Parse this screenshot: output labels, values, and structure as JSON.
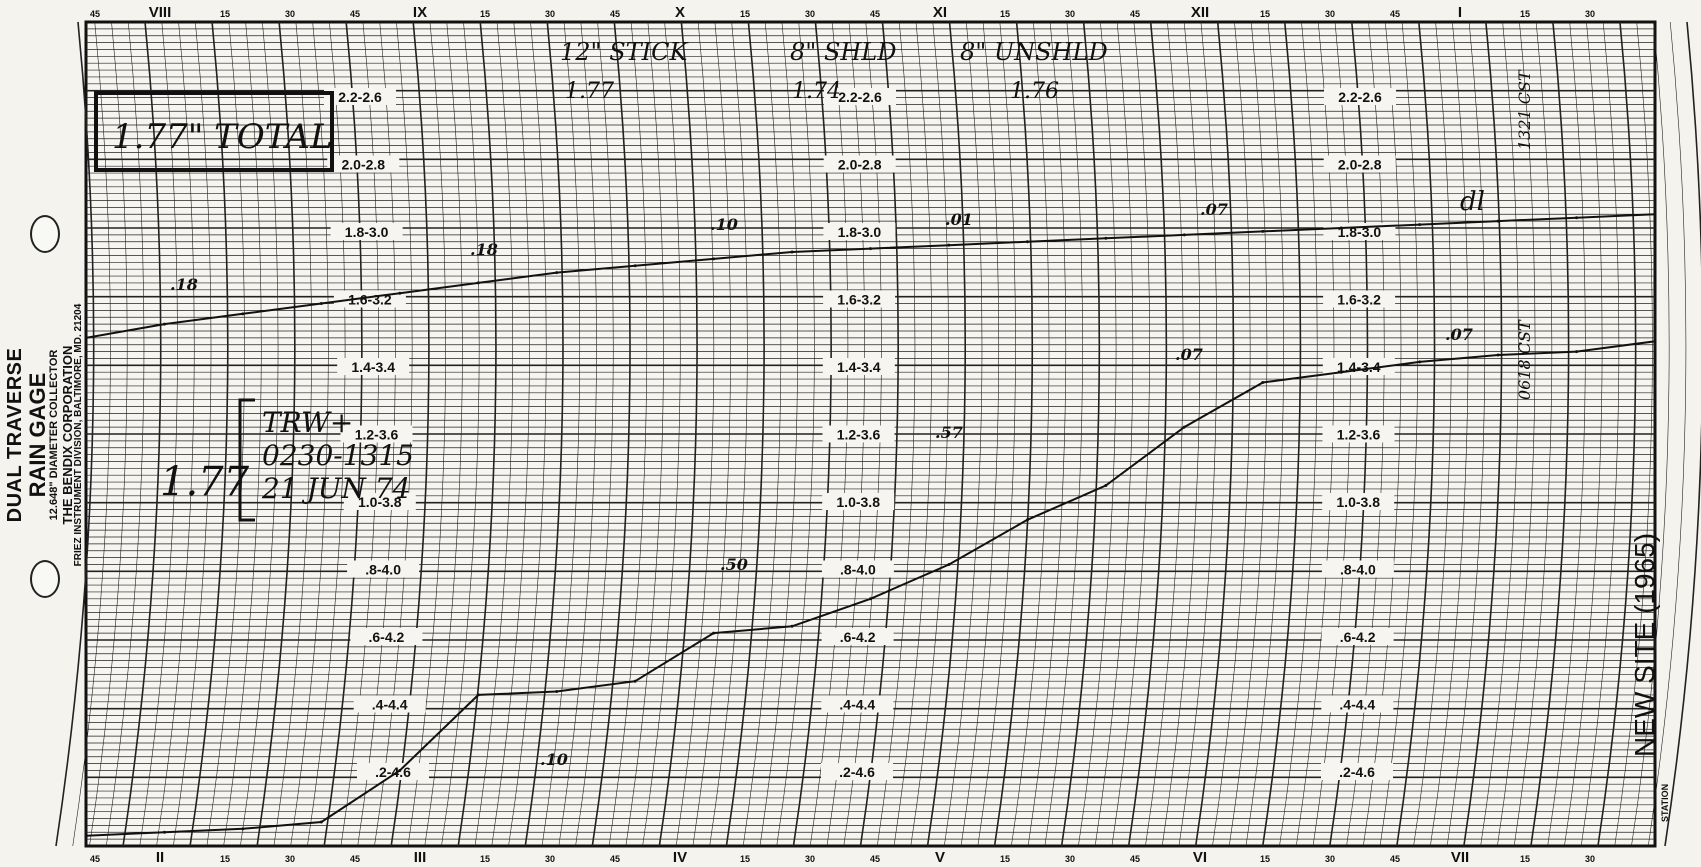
{
  "chart_data": {
    "type": "line",
    "title": "",
    "xlabel": "",
    "ylabel": "",
    "top_time_axis": [
      "45",
      "VIII",
      "15",
      "30",
      "45",
      "IX",
      "15",
      "30",
      "45",
      "X",
      "15",
      "30",
      "45",
      "XI",
      "15",
      "30",
      "45",
      "XII",
      "15",
      "30",
      "45",
      "I",
      "15",
      "30"
    ],
    "bottom_time_axis": [
      "45",
      "II",
      "15",
      "30",
      "45",
      "III",
      "15",
      "30",
      "45",
      "IV",
      "15",
      "30",
      "45",
      "V",
      "15",
      "30",
      "45",
      "VI",
      "15",
      "30",
      "45",
      "VII",
      "15",
      "30"
    ],
    "dual_scale_labels": [
      "2.2-2.6",
      "2.0-2.8",
      "1.8-3.0",
      "1.6-3.2",
      "1.4-3.4",
      "1.2-3.6",
      "1.0-3.8",
      ".8-4.0",
      ".6-4.2",
      ".4-4.4",
      ".2-4.6"
    ],
    "series": [
      {
        "x": [
          0.0,
          0.05,
          0.1,
          0.15,
          0.2,
          0.25,
          0.3,
          0.35,
          0.4,
          0.45,
          0.5,
          0.55,
          0.6,
          0.65,
          0.7,
          0.75,
          0.8,
          0.85,
          0.9,
          0.95,
          1.0
        ],
        "y": [
          1.48,
          1.52,
          1.55,
          1.58,
          1.61,
          1.64,
          1.67,
          1.69,
          1.71,
          1.73,
          1.74,
          1.75,
          1.76,
          1.77,
          1.78,
          1.79,
          1.8,
          1.81,
          1.82,
          1.83,
          1.84
        ]
      },
      {
        "x": [
          0.0,
          0.05,
          0.1,
          0.15,
          0.2,
          0.25,
          0.3,
          0.35,
          0.4,
          0.45,
          0.5,
          0.55,
          0.6,
          0.65,
          0.7,
          0.75,
          0.8,
          0.85,
          0.9,
          0.95,
          1.0
        ],
        "y": [
          0.03,
          0.04,
          0.05,
          0.07,
          0.22,
          0.44,
          0.45,
          0.48,
          0.62,
          0.64,
          0.72,
          0.82,
          0.95,
          1.05,
          1.22,
          1.35,
          1.38,
          1.41,
          1.43,
          1.44,
          1.47
        ]
      }
    ],
    "ylim": [
      0,
      2.4
    ]
  },
  "annotations": {
    "total_box": "1.77\" TOTAL",
    "stick_label": "12\" STICK",
    "stick_value": "1.77",
    "shld_label": "8\" SHLD",
    "shld_value": "1.74",
    "unshld_label": "8\" UNSHLD",
    "unshld_value": "1.76",
    "bracket_total": "1.77",
    "trwt": "TRW+",
    "time_range": "0230-1315",
    "date": "21 JUN 74",
    "marks_upper": [
      ".18",
      ".18",
      ".10",
      ".01",
      ".07"
    ],
    "marks_lower": [
      ".10",
      ".50",
      ".57",
      ".07",
      ".07"
    ],
    "right_top": "1321 CST",
    "right_mid": "0618 CST",
    "initials": "dl"
  },
  "left_text": {
    "line1": "DUAL TRAVERSE",
    "line2": "RAIN GAGE",
    "line3": "12.648\" DIAMETER COLLECTOR",
    "line4": "THE BENDIX CORPORATION",
    "line5": "FRIEZ INSTRUMENT DIVISION, BALTIMORE, MD. 21204"
  },
  "station": {
    "name": "NEW SITE (1965)",
    "label": "STATION"
  }
}
